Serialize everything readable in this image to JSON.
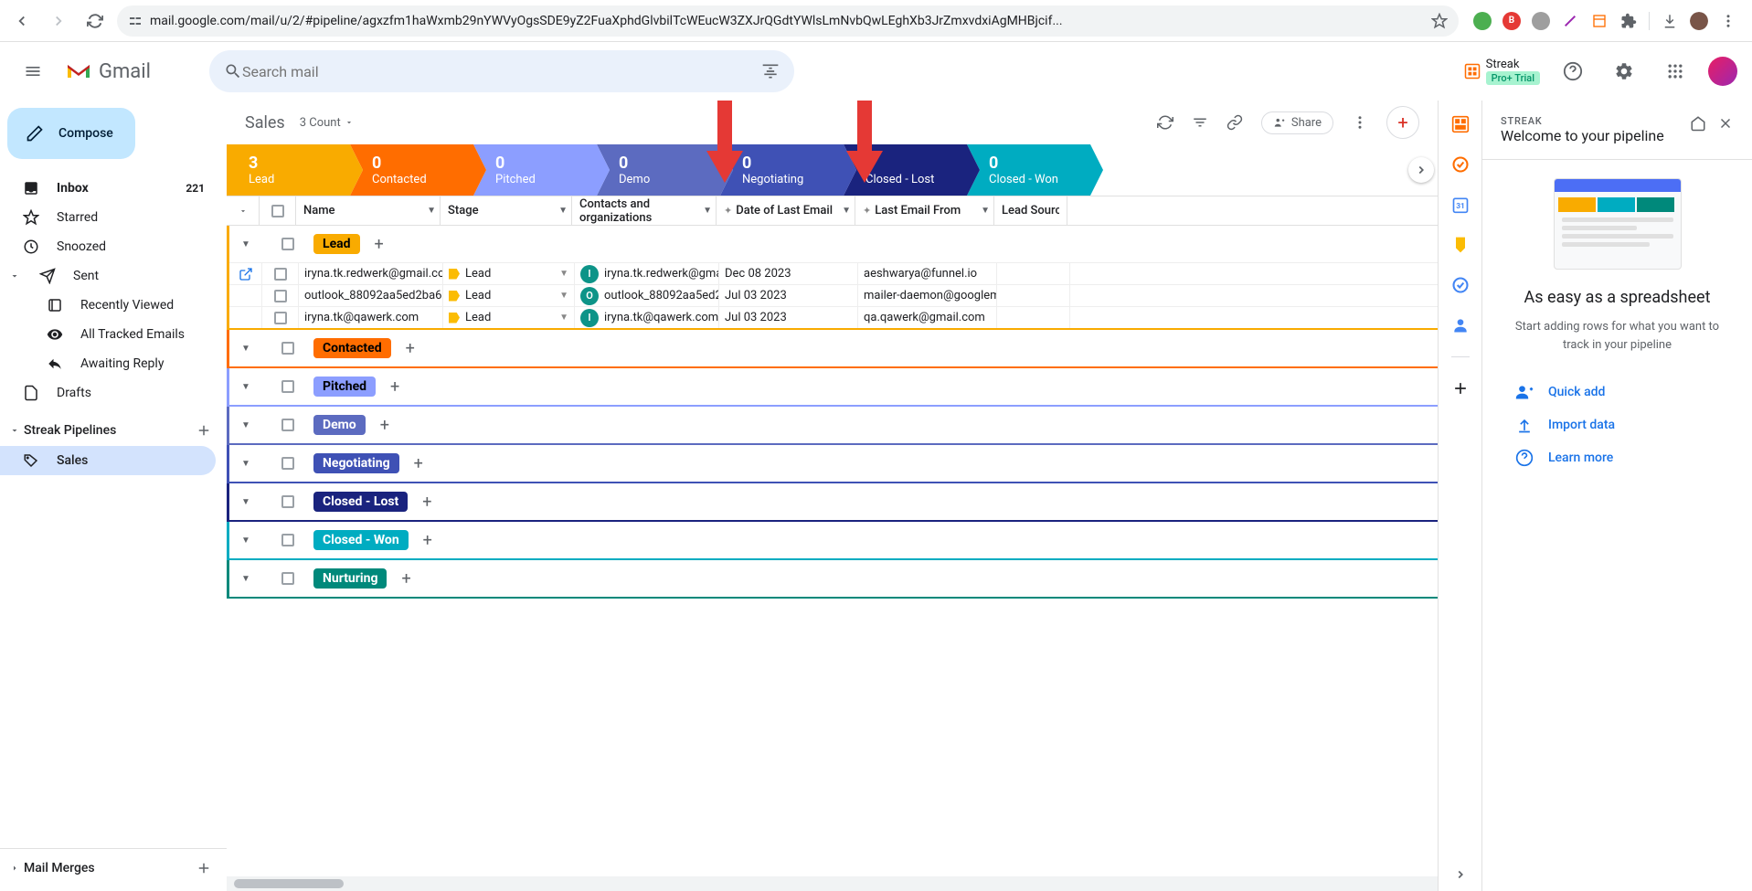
{
  "browser": {
    "url": "mail.google.com/mail/u/2/#pipeline/agxzfm1haWxmb29nYWVyOgsSDE9yZ2FuaXphdGlvbilTcWEucW3ZXJrQGdtYWlsLmNvbQwLEghXb3JrZmxvdxiAgMHBjcif..."
  },
  "gmail": {
    "brand": "Gmail",
    "search_placeholder": "Search mail",
    "compose": "Compose",
    "nav": [
      {
        "icon": "inbox",
        "label": "Inbox",
        "count": "221",
        "bold": true
      },
      {
        "icon": "star",
        "label": "Starred"
      },
      {
        "icon": "clock",
        "label": "Snoozed"
      },
      {
        "icon": "send",
        "label": "Sent",
        "expandable": true
      },
      {
        "icon": "recent",
        "label": "Recently Viewed",
        "sub": true
      },
      {
        "icon": "eye",
        "label": "All Tracked Emails",
        "sub": true
      },
      {
        "icon": "reply",
        "label": "Awaiting Reply",
        "sub": true
      },
      {
        "icon": "draft",
        "label": "Drafts"
      }
    ],
    "pipelines_section": "Streak Pipelines",
    "pipelines": [
      {
        "icon": "tag",
        "label": "Sales",
        "selected": true
      }
    ],
    "mail_merges": "Mail Merges"
  },
  "streak_header": {
    "name": "Streak",
    "trial": "Pro+ Trial"
  },
  "pipeline": {
    "title": "Sales",
    "count_label": "3 Count",
    "share": "Share",
    "stages": [
      {
        "count": "3",
        "label": "Lead",
        "color": "#f9ab00"
      },
      {
        "count": "0",
        "label": "Contacted",
        "color": "#ff6d00"
      },
      {
        "count": "0",
        "label": "Pitched",
        "color": "#8c9eff"
      },
      {
        "count": "0",
        "label": "Demo",
        "color": "#5c6bc0"
      },
      {
        "count": "0",
        "label": "Negotiating",
        "color": "#3f51b5"
      },
      {
        "count": "0",
        "label": "Closed - Lost",
        "color": "#1a237e"
      },
      {
        "count": "0",
        "label": "Closed - Won",
        "color": "#00acc1"
      }
    ],
    "columns": {
      "name": "Name",
      "stage": "Stage",
      "contacts": "Contacts and organizations",
      "date": "Date of Last Email",
      "lastemail": "Last Email From",
      "leadsource": "Lead Source"
    },
    "groups": [
      {
        "name": "Lead",
        "color": "#f9ab00",
        "textColor": "#000"
      },
      {
        "name": "Contacted",
        "color": "#ff6d00",
        "textColor": "#000"
      },
      {
        "name": "Pitched",
        "color": "#8c9eff",
        "textColor": "#000"
      },
      {
        "name": "Demo",
        "color": "#5c6bc0",
        "textColor": "#fff"
      },
      {
        "name": "Negotiating",
        "color": "#3f51b5",
        "textColor": "#fff"
      },
      {
        "name": "Closed - Lost",
        "color": "#1a237e",
        "textColor": "#fff"
      },
      {
        "name": "Closed - Won",
        "color": "#00acc1",
        "textColor": "#fff"
      },
      {
        "name": "Nurturing",
        "color": "#00897b",
        "textColor": "#fff"
      }
    ],
    "rows": [
      {
        "name": "iryna.tk.redwerk@gmail.com",
        "stage": "Lead",
        "avatar": "I",
        "contact": "iryna.tk.redwerk@gmail.com",
        "date": "Dec 08 2023",
        "from": "aeshwarya@funnel.io",
        "open": true
      },
      {
        "name": "outlook_88092aa5ed2ba6",
        "stage": "Lead",
        "avatar": "O",
        "contact": "outlook_88092aa5ed2",
        "date": "Jul 03 2023",
        "from": "mailer-daemon@googlemail"
      },
      {
        "name": "iryna.tk@qawerk.com",
        "stage": "Lead",
        "avatar": "I",
        "contact": "iryna.tk@qawerk.com",
        "date": "Jul 03 2023",
        "from": "qa.qawerk@gmail.com"
      }
    ]
  },
  "panel": {
    "label": "STREAK",
    "title": "Welcome to your pipeline",
    "heading": "As easy as a spreadsheet",
    "desc": "Start adding rows for what you want to track in your pipeline",
    "links": [
      {
        "icon": "person_add",
        "label": "Quick add"
      },
      {
        "icon": "upload",
        "label": "Import data"
      },
      {
        "icon": "help",
        "label": "Learn more"
      }
    ]
  },
  "colors": {
    "primary": "#1a73e8",
    "compose_bg": "#c2e7ff"
  }
}
